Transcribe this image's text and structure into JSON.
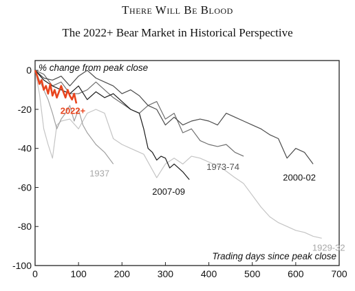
{
  "chart_data": {
    "type": "line",
    "title": "There Will Be Blood",
    "subtitle": "The 2022+ Bear Market in Historical Perspective",
    "ylabel": "% change from peak close",
    "xlabel": "Trading days since peak close",
    "xlim": [
      0,
      700
    ],
    "ylim": [
      -100,
      5
    ],
    "xticks": [
      "0",
      "100",
      "200",
      "300",
      "400",
      "500",
      "600",
      "700"
    ],
    "yticks": [
      "0",
      "-20",
      "-40",
      "-60",
      "-80",
      "-100"
    ],
    "grid": false,
    "series": [
      {
        "name": "1929-32",
        "color": "#c4c4c4",
        "x": [
          0,
          10,
          20,
          30,
          40,
          50,
          60,
          80,
          100,
          120,
          140,
          160,
          180,
          200,
          220,
          250,
          280,
          300,
          320,
          340,
          360,
          380,
          400,
          430,
          460,
          480,
          500,
          520,
          540,
          560,
          580,
          600,
          620,
          640,
          660
        ],
        "y": [
          0,
          -12,
          -30,
          -38,
          -45,
          -28,
          -26,
          -25,
          -30,
          -22,
          -20,
          -22,
          -35,
          -38,
          -40,
          -43,
          -55,
          -48,
          -45,
          -48,
          -44,
          -45,
          -47,
          -50,
          -55,
          -58,
          -64,
          -70,
          -75,
          -78,
          -80,
          -82,
          -83,
          -85,
          -86
        ]
      },
      {
        "name": "1937",
        "color": "#a0a0a0",
        "x": [
          0,
          10,
          20,
          30,
          40,
          50,
          60,
          70,
          80,
          90,
          100,
          110,
          120,
          140,
          160,
          180
        ],
        "y": [
          0,
          -5,
          -10,
          -15,
          -22,
          -30,
          -25,
          -22,
          -18,
          -26,
          -20,
          -28,
          -32,
          -38,
          -42,
          -48
        ]
      },
      {
        "name": "1973-74",
        "color": "#6e6e6e",
        "x": [
          0,
          20,
          40,
          60,
          80,
          100,
          120,
          140,
          160,
          180,
          200,
          220,
          240,
          260,
          280,
          300,
          320,
          340,
          360,
          380,
          400,
          420,
          440,
          460,
          480
        ],
        "y": [
          0,
          -2,
          -8,
          -6,
          -12,
          -12,
          -10,
          -6,
          -10,
          -14,
          -17,
          -20,
          -22,
          -18,
          -16,
          -25,
          -22,
          -32,
          -30,
          -36,
          -38,
          -39,
          -38,
          -42,
          -44
        ]
      },
      {
        "name": "2000-02",
        "color": "#4a4a4a",
        "x": [
          0,
          20,
          40,
          60,
          80,
          100,
          120,
          140,
          160,
          180,
          200,
          220,
          240,
          260,
          280,
          300,
          320,
          340,
          360,
          380,
          400,
          420,
          440,
          460,
          480,
          500,
          520,
          540,
          560,
          580,
          600,
          620,
          640
        ],
        "y": [
          0,
          -4,
          -5,
          -3,
          -8,
          -3,
          0,
          -4,
          -6,
          -8,
          -12,
          -10,
          -13,
          -18,
          -20,
          -28,
          -24,
          -28,
          -26,
          -25,
          -26,
          -28,
          -22,
          -24,
          -26,
          -28,
          -30,
          -33,
          -35,
          -45,
          -40,
          -42,
          -48
        ]
      },
      {
        "name": "2007-09",
        "color": "#1a1a1a",
        "x": [
          0,
          20,
          40,
          60,
          80,
          100,
          120,
          140,
          160,
          180,
          200,
          220,
          240,
          250,
          260,
          270,
          280,
          290,
          300,
          310,
          320,
          340,
          355
        ],
        "y": [
          0,
          -5,
          -8,
          -10,
          -12,
          -8,
          -15,
          -11,
          -14,
          -12,
          -16,
          -20,
          -22,
          -30,
          -40,
          -42,
          -46,
          -44,
          -45,
          -50,
          -48,
          -52,
          -56
        ]
      },
      {
        "name": "2022+",
        "color": "#e8451e",
        "x": [
          0,
          5,
          10,
          15,
          20,
          25,
          30,
          35,
          40,
          45,
          50,
          55,
          60,
          65,
          70,
          75,
          80,
          85,
          90,
          95
        ],
        "y": [
          0,
          -3,
          -7,
          -5,
          -10,
          -8,
          -12,
          -7,
          -13,
          -10,
          -14,
          -11,
          -8,
          -11,
          -14,
          -10,
          -13,
          -15,
          -12,
          -17
        ]
      }
    ]
  }
}
